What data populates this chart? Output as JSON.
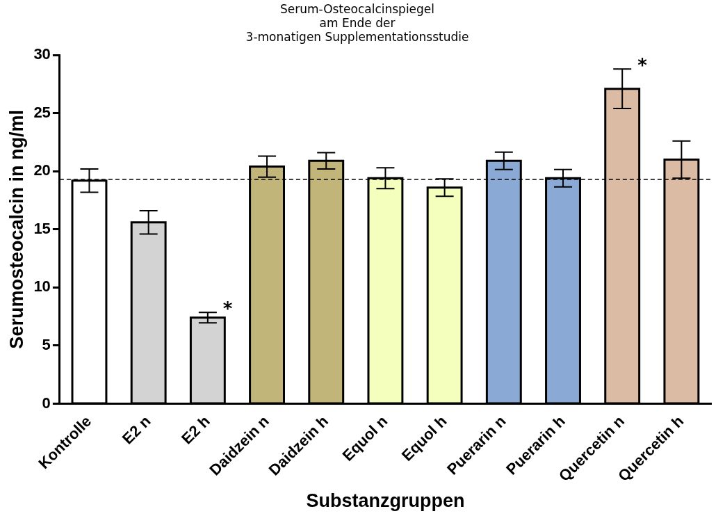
{
  "chart_data": {
    "type": "bar",
    "title": [
      "Serum-Osteocalcinspiegel",
      "am Ende der",
      "3-monatigen Supplementationsstudie"
    ],
    "xlabel": "Substanzgruppen",
    "ylabel": "Serumosteocalcin in ng/ml",
    "categories": [
      "Kontrolle",
      "E2 n",
      "E2 h",
      "Daidzein n",
      "Daidzein h",
      "Equol n",
      "Equol h",
      "Puerarin n",
      "Puerarin h",
      "Quercetin n",
      "Quercetin h"
    ],
    "values": [
      19.2,
      15.6,
      7.4,
      20.4,
      20.9,
      19.4,
      18.6,
      20.9,
      19.4,
      27.1,
      21.0
    ],
    "errors": [
      1.0,
      1.0,
      0.45,
      0.9,
      0.7,
      0.9,
      0.75,
      0.75,
      0.75,
      1.7,
      1.6
    ],
    "colors": [
      "#ffffff",
      "#d3d3d3",
      "#d3d3d3",
      "#c2b57a",
      "#c2b57a",
      "#f5ffbd",
      "#f5ffbd",
      "#8aaad5",
      "#8aaad5",
      "#dbbba3",
      "#dbbba3"
    ],
    "ylim": [
      0,
      30
    ],
    "yticks": [
      0,
      5,
      10,
      15,
      20,
      25,
      30
    ],
    "grid": false,
    "legend": false,
    "ref_lines": [
      {
        "axis": "y",
        "value": 19.3,
        "line_style": "dashed"
      }
    ],
    "annotations": [
      {
        "text": "*",
        "x": "E2 h",
        "y": 7.85
      },
      {
        "text": "*",
        "x": "Quercetin n",
        "y": 28.8
      }
    ]
  }
}
